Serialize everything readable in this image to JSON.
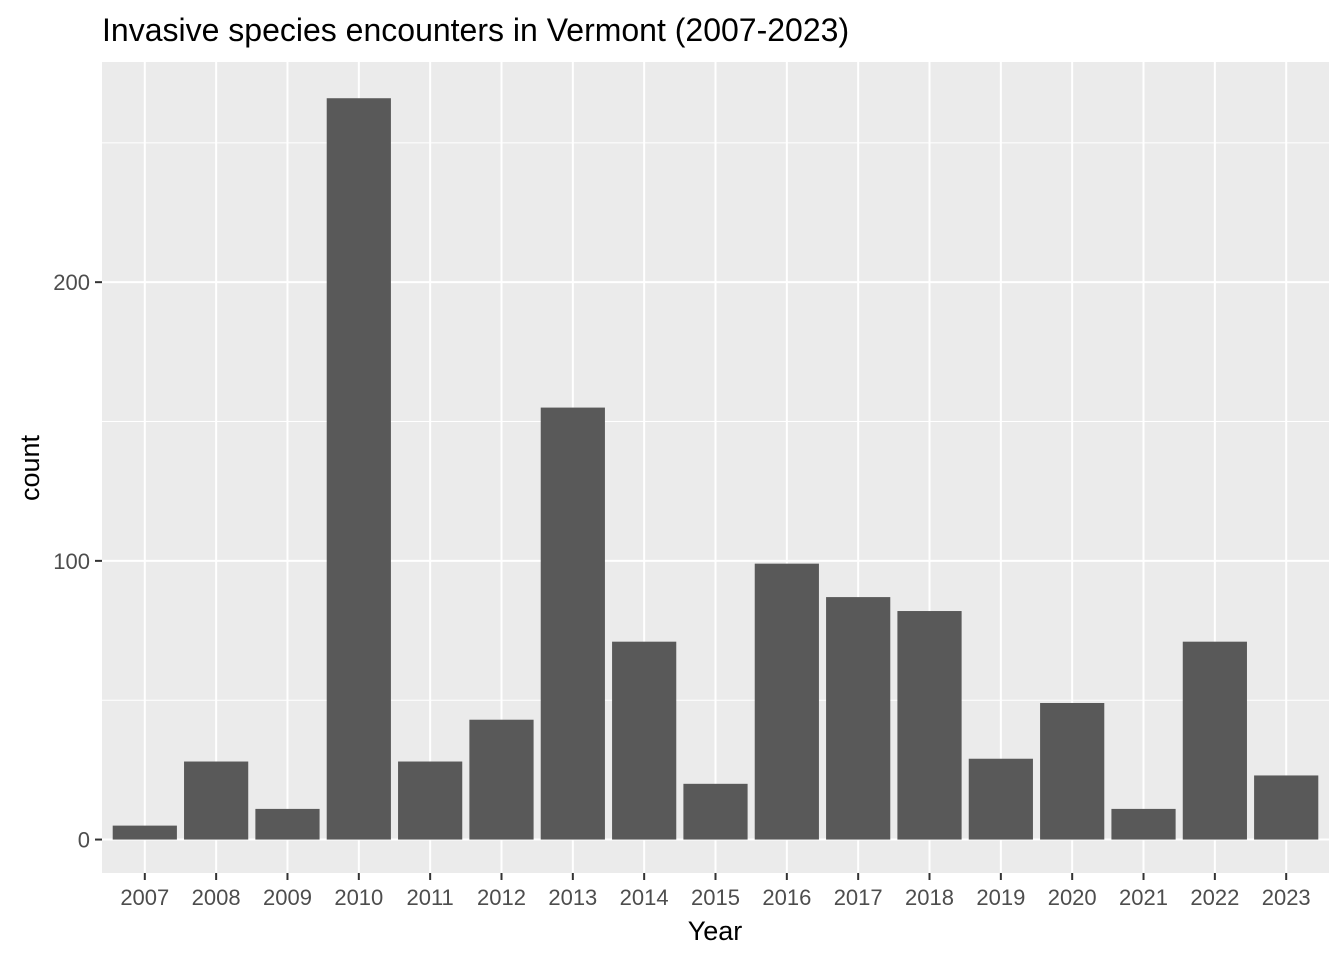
{
  "chart_data": {
    "type": "bar",
    "title": "Invasive species encounters in Vermont (2007-2023)",
    "xlabel": "Year",
    "ylabel": "count",
    "categories": [
      "2007",
      "2008",
      "2009",
      "2010",
      "2011",
      "2012",
      "2013",
      "2014",
      "2015",
      "2016",
      "2017",
      "2018",
      "2019",
      "2020",
      "2021",
      "2022",
      "2023"
    ],
    "values": [
      5,
      28,
      11,
      266,
      28,
      43,
      155,
      71,
      20,
      99,
      87,
      82,
      29,
      49,
      11,
      71,
      23
    ],
    "y_ticks": [
      0,
      100,
      200
    ],
    "ylim": [
      -12,
      279
    ],
    "grid": true,
    "colors": {
      "panel": "#ebebeb",
      "grid": "#ffffff",
      "bar": "#595959",
      "tick": "#333333"
    }
  }
}
